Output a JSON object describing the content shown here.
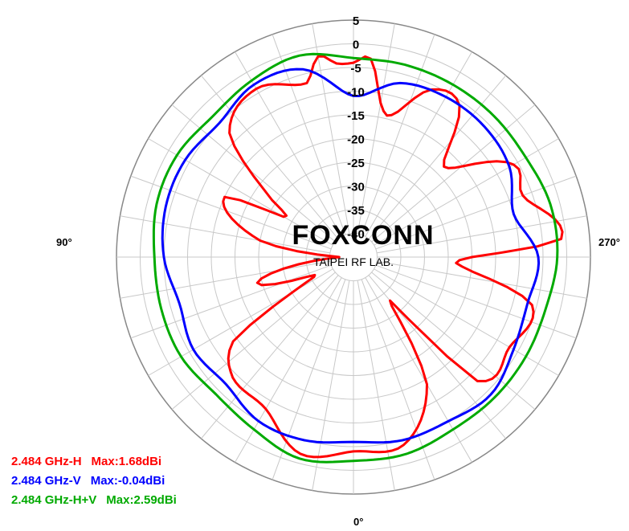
{
  "chart_data": {
    "type": "polar-line",
    "radial_unit": "dB",
    "radial_range": [
      -45,
      5
    ],
    "radial_ticks": [
      "5",
      "0",
      "-5",
      "-10",
      "-15",
      "-20",
      "-25",
      "-30",
      "-35",
      "-40"
    ],
    "angle_labels": {
      "top": "",
      "left": "90°",
      "right": "270°",
      "bottom": "0°"
    },
    "angle_direction": "clockwise-from-bottom-0-left-90",
    "grid": true,
    "legend_position": "bottom-left",
    "series": [
      {
        "label": "2.484 GHz-H",
        "max_label": "Max:1.68dBi",
        "color": "#ff0000",
        "angles": [
          0,
          15,
          30,
          45,
          55,
          60,
          65,
          75,
          90,
          100,
          115,
          120,
          125,
          135,
          150,
          165,
          170,
          175,
          180,
          185,
          190,
          195,
          205,
          215,
          225,
          240,
          250,
          265,
          270,
          275,
          285,
          300,
          315,
          320,
          330,
          345
        ],
        "values": [
          -4,
          -2,
          -8,
          -9,
          -14,
          -30,
          -36,
          -24,
          -42,
          -25,
          -15,
          -28,
          -24,
          -8,
          -4,
          -7,
          -2,
          -4,
          -4,
          -3,
          -12,
          -14,
          -6,
          -6,
          -18,
          -6,
          -7,
          -1,
          -20,
          -22,
          -6,
          -7,
          -8,
          -33,
          -14,
          -4
        ]
      },
      {
        "label": "2.484 GHz-V",
        "max_label": "Max:-0.04dBi",
        "color": "#0000ff",
        "angles": [
          0,
          15,
          30,
          45,
          60,
          75,
          90,
          105,
          120,
          135,
          150,
          165,
          180,
          195,
          210,
          225,
          240,
          255,
          270,
          285,
          300,
          315,
          330,
          345
        ],
        "values": [
          -6,
          -5,
          -5,
          -7,
          -6,
          -7,
          -5,
          -4,
          -4,
          -5,
          -3,
          -4,
          -11,
          -7,
          -6,
          -6,
          -7,
          -10,
          -6,
          -7,
          -6,
          -4,
          -5,
          -5
        ]
      },
      {
        "label": "2.484 GHz-H+V",
        "max_label": "Max:2.59dBi",
        "color": "#00aa00",
        "angles": [
          0,
          15,
          30,
          45,
          60,
          75,
          90,
          105,
          120,
          135,
          150,
          165,
          180,
          195,
          210,
          225,
          240,
          255,
          270,
          285,
          300,
          315,
          330,
          345
        ],
        "values": [
          -2,
          -1,
          -3,
          -4,
          -3,
          -3,
          -3,
          -2,
          -2,
          -3,
          -2,
          -1,
          -3,
          -3,
          -3,
          -3,
          -3,
          -2,
          -2,
          -3,
          -3,
          -3,
          -3,
          -2
        ]
      }
    ]
  },
  "watermark": {
    "brand": "FOXCONN",
    "sublabel": "TAIPEI RF LAB."
  },
  "legend": [
    {
      "label": "2.484 GHz-H",
      "max": "Max:1.68dBi",
      "color": "#ff0000"
    },
    {
      "label": "2.484 GHz-V",
      "max": "Max:-0.04dBi",
      "color": "#0000ff"
    },
    {
      "label": "2.484 GHz-H+V",
      "max": "Max:2.59dBi",
      "color": "#00aa00"
    }
  ]
}
